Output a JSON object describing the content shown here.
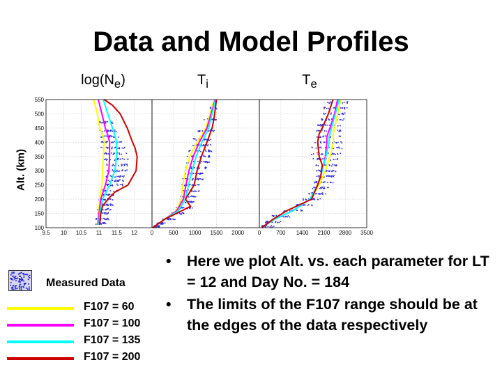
{
  "slide": {
    "title": "Data and Model Profiles",
    "y_axis_label": "Alt. (km)"
  },
  "bullets": [
    "Here we plot Alt. vs. each parameter for LT = 12 and Day No. = 184",
    "The limits of the F107 range should be at the edges of the data respectively"
  ],
  "legend": {
    "measured_label": "Measured Data",
    "items": [
      {
        "label": "F107 = 60",
        "color": "#ffff00"
      },
      {
        "label": "F107 = 100",
        "color": "#ff00ff"
      },
      {
        "label": "F107 = 135",
        "color": "#00ffff"
      },
      {
        "label": "F107 = 200",
        "color": "#cc0000"
      }
    ]
  },
  "chart_data": [
    {
      "type": "line",
      "title_base": "log(N",
      "title_sub": "e",
      "title_suffix": ")",
      "ylim": [
        100,
        550
      ],
      "yticks": [
        100,
        150,
        200,
        250,
        300,
        350,
        400,
        450,
        500,
        550
      ],
      "xlim": [
        9.5,
        12.5
      ],
      "xticks": [
        9.5,
        10,
        10.5,
        11,
        11.5,
        12
      ],
      "xtick_labels": [
        "9.5",
        "10",
        "10.5",
        "11",
        "11.5",
        "12"
      ],
      "grid": true,
      "series": [
        {
          "legend": "F107 = 60",
          "color": "#ffff00",
          "x": [
            10.95,
            10.98,
            11.02,
            11.08,
            11.1,
            11.12,
            11.15,
            11.1,
            11.02,
            10.95,
            10.85
          ],
          "y": [
            110,
            150,
            200,
            250,
            300,
            350,
            400,
            425,
            450,
            500,
            550
          ]
        },
        {
          "legend": "F107 = 100",
          "color": "#ff00ff",
          "x": [
            10.97,
            11.0,
            11.05,
            11.18,
            11.28,
            11.3,
            11.3,
            11.25,
            11.18,
            11.08,
            10.98
          ],
          "y": [
            110,
            150,
            200,
            250,
            300,
            350,
            400,
            425,
            450,
            500,
            550
          ]
        },
        {
          "legend": "F107 = 135",
          "color": "#00ffff",
          "x": [
            11.0,
            11.02,
            11.1,
            11.3,
            11.45,
            11.5,
            11.5,
            11.45,
            11.38,
            11.25,
            11.12
          ],
          "y": [
            110,
            150,
            200,
            250,
            300,
            350,
            400,
            425,
            450,
            500,
            550
          ]
        },
        {
          "legend": "F107 = 200",
          "color": "#cc0000",
          "x": [
            11.02,
            11.05,
            11.1,
            11.25,
            11.45,
            11.82,
            12.05,
            12.08,
            12.02,
            11.95,
            11.8,
            11.6,
            11.38,
            11.15
          ],
          "y": [
            110,
            150,
            175,
            200,
            225,
            250,
            300,
            350,
            380,
            400,
            450,
            500,
            530,
            550
          ]
        }
      ],
      "measured": [
        {
          "y": 115,
          "x0": 10.9,
          "x1": 11.2
        },
        {
          "y": 130,
          "x0": 10.9,
          "x1": 11.3
        },
        {
          "y": 150,
          "x0": 10.95,
          "x1": 11.3
        },
        {
          "y": 165,
          "x0": 10.95,
          "x1": 11.35
        },
        {
          "y": 180,
          "x0": 11.05,
          "x1": 11.4
        },
        {
          "y": 200,
          "x0": 11.0,
          "x1": 11.4
        },
        {
          "y": 215,
          "x0": 11.1,
          "x1": 11.5
        },
        {
          "y": 230,
          "x0": 11.1,
          "x1": 11.55
        },
        {
          "y": 250,
          "x0": 11.2,
          "x1": 11.7
        },
        {
          "y": 265,
          "x0": 11.2,
          "x1": 11.7
        },
        {
          "y": 280,
          "x0": 11.2,
          "x1": 11.75
        },
        {
          "y": 300,
          "x0": 11.2,
          "x1": 11.8
        },
        {
          "y": 320,
          "x0": 11.15,
          "x1": 11.8
        },
        {
          "y": 340,
          "x0": 11.1,
          "x1": 11.85
        },
        {
          "y": 360,
          "x0": 11.1,
          "x1": 11.8
        },
        {
          "y": 380,
          "x0": 11.05,
          "x1": 11.75
        },
        {
          "y": 400,
          "x0": 11.05,
          "x1": 11.7
        },
        {
          "y": 420,
          "x0": 11.05,
          "x1": 11.6
        },
        {
          "y": 440,
          "x0": 11.0,
          "x1": 11.5
        },
        {
          "y": 470,
          "x0": 11.0,
          "x1": 11.4
        }
      ]
    },
    {
      "type": "line",
      "title_base": "T",
      "title_sub": "i",
      "title_suffix": "",
      "ylim": [
        100,
        550
      ],
      "yticks": [
        100,
        150,
        200,
        250,
        300,
        350,
        400,
        450,
        500,
        550
      ],
      "xlim": [
        0,
        2500
      ],
      "xticks": [
        0,
        500,
        1000,
        1500,
        2000
      ],
      "xtick_labels": [
        "0",
        "500",
        "1000",
        "1500",
        "2000"
      ],
      "grid": true,
      "series": [
        {
          "legend": "F107 = 60",
          "color": "#ffff00",
          "x": [
            20,
            300,
            560,
            680,
            720,
            780,
            880,
            1050,
            1250,
            1450
          ],
          "y": [
            100,
            130,
            160,
            200,
            250,
            300,
            350,
            400,
            450,
            550
          ]
        },
        {
          "legend": "F107 = 100",
          "color": "#ff00ff",
          "x": [
            20,
            300,
            580,
            730,
            790,
            860,
            960,
            1100,
            1280,
            1470
          ],
          "y": [
            100,
            130,
            160,
            200,
            250,
            300,
            350,
            400,
            450,
            550
          ]
        },
        {
          "legend": "F107 = 135",
          "color": "#00ffff",
          "x": [
            20,
            300,
            620,
            780,
            850,
            930,
            1030,
            1160,
            1320,
            1480
          ],
          "y": [
            100,
            130,
            160,
            200,
            250,
            300,
            350,
            400,
            450,
            550
          ]
        },
        {
          "legend": "F107 = 200",
          "color": "#cc0000",
          "x": [
            20,
            300,
            700,
            900,
            780,
            980,
            1050,
            1150,
            1280,
            1400,
            1440,
            1460,
            1500
          ],
          "y": [
            100,
            130,
            160,
            175,
            200,
            250,
            300,
            350,
            400,
            450,
            480,
            500,
            550
          ]
        }
      ],
      "measured": [
        {
          "y": 105,
          "x0": 40,
          "x1": 200
        },
        {
          "y": 115,
          "x0": 100,
          "x1": 350
        },
        {
          "y": 130,
          "x0": 250,
          "x1": 550
        },
        {
          "y": 150,
          "x0": 450,
          "x1": 800
        },
        {
          "y": 170,
          "x0": 550,
          "x1": 950
        },
        {
          "y": 190,
          "x0": 620,
          "x1": 1000
        },
        {
          "y": 210,
          "x0": 650,
          "x1": 1050
        },
        {
          "y": 230,
          "x0": 680,
          "x1": 1100
        },
        {
          "y": 250,
          "x0": 700,
          "x1": 1150
        },
        {
          "y": 270,
          "x0": 720,
          "x1": 1200
        },
        {
          "y": 290,
          "x0": 750,
          "x1": 1250
        },
        {
          "y": 310,
          "x0": 780,
          "x1": 1300
        },
        {
          "y": 330,
          "x0": 800,
          "x1": 1350
        },
        {
          "y": 350,
          "x0": 820,
          "x1": 1350
        },
        {
          "y": 370,
          "x0": 850,
          "x1": 1400
        },
        {
          "y": 390,
          "x0": 900,
          "x1": 1400
        },
        {
          "y": 410,
          "x0": 950,
          "x1": 1400
        },
        {
          "y": 440,
          "x0": 1050,
          "x1": 1450
        },
        {
          "y": 480,
          "x0": 1200,
          "x1": 1500
        },
        {
          "y": 520,
          "x0": 1350,
          "x1": 1550
        }
      ]
    },
    {
      "type": "line",
      "title_base": "T",
      "title_sub": "e",
      "title_suffix": "",
      "ylim": [
        100,
        550
      ],
      "yticks": [
        100,
        150,
        200,
        250,
        300,
        350,
        400,
        450,
        500,
        550
      ],
      "xlim": [
        0,
        3500
      ],
      "xticks": [
        0,
        700,
        1400,
        2100,
        2800,
        3500
      ],
      "xtick_labels": [
        "0",
        "700",
        "1400",
        "2100",
        "2800",
        "3500"
      ],
      "grid": true,
      "series": [
        {
          "legend": "F107 = 60",
          "color": "#ffff00",
          "x": [
            80,
            500,
            1100,
            1650,
            1950,
            2150,
            2300,
            2420,
            2400,
            2450,
            2550,
            2650
          ],
          "y": [
            100,
            130,
            160,
            200,
            250,
            300,
            350,
            400,
            420,
            450,
            500,
            550
          ]
        },
        {
          "legend": "F107 = 100",
          "color": "#ff00ff",
          "x": [
            80,
            500,
            1100,
            1650,
            1900,
            2050,
            2150,
            2200,
            2200,
            2300,
            2450,
            2550
          ],
          "y": [
            100,
            130,
            160,
            200,
            250,
            300,
            350,
            400,
            420,
            450,
            500,
            550
          ]
        },
        {
          "legend": "F107 = 135",
          "color": "#00ffff",
          "x": [
            80,
            500,
            1100,
            1650,
            1900,
            2050,
            2170,
            2270,
            2280,
            2350,
            2480,
            2600
          ],
          "y": [
            100,
            130,
            160,
            200,
            250,
            300,
            350,
            400,
            420,
            450,
            500,
            550
          ]
        },
        {
          "legend": "F107 = 200",
          "color": "#cc0000",
          "x": [
            80,
            450,
            900,
            1700,
            1900,
            2000,
            2050,
            1950,
            1900,
            1950,
            2050,
            2250,
            2400
          ],
          "y": [
            100,
            130,
            160,
            200,
            250,
            280,
            320,
            350,
            400,
            430,
            450,
            500,
            550
          ]
        }
      ],
      "measured": [
        {
          "y": 105,
          "x0": 60,
          "x1": 500
        },
        {
          "y": 120,
          "x0": 200,
          "x1": 700
        },
        {
          "y": 140,
          "x0": 400,
          "x1": 1000
        },
        {
          "y": 160,
          "x0": 800,
          "x1": 1400
        },
        {
          "y": 180,
          "x0": 1100,
          "x1": 1800
        },
        {
          "y": 200,
          "x0": 1400,
          "x1": 2000
        },
        {
          "y": 220,
          "x0": 1600,
          "x1": 2200
        },
        {
          "y": 240,
          "x0": 1700,
          "x1": 2300
        },
        {
          "y": 260,
          "x0": 1800,
          "x1": 2400
        },
        {
          "y": 280,
          "x0": 1800,
          "x1": 2450
        },
        {
          "y": 300,
          "x0": 1800,
          "x1": 2500
        },
        {
          "y": 320,
          "x0": 1800,
          "x1": 2550
        },
        {
          "y": 340,
          "x0": 1750,
          "x1": 2600
        },
        {
          "y": 360,
          "x0": 1700,
          "x1": 2650
        },
        {
          "y": 380,
          "x0": 1700,
          "x1": 2700
        },
        {
          "y": 400,
          "x0": 1700,
          "x1": 2800
        },
        {
          "y": 420,
          "x0": 1800,
          "x1": 2700
        },
        {
          "y": 440,
          "x0": 1850,
          "x1": 2750
        },
        {
          "y": 460,
          "x0": 1900,
          "x1": 2800
        },
        {
          "y": 480,
          "x0": 2000,
          "x1": 2800
        },
        {
          "y": 500,
          "x0": 2050,
          "x1": 2900
        },
        {
          "y": 520,
          "x0": 2100,
          "x1": 2900
        },
        {
          "y": 540,
          "x0": 2200,
          "x1": 2950
        }
      ]
    }
  ]
}
